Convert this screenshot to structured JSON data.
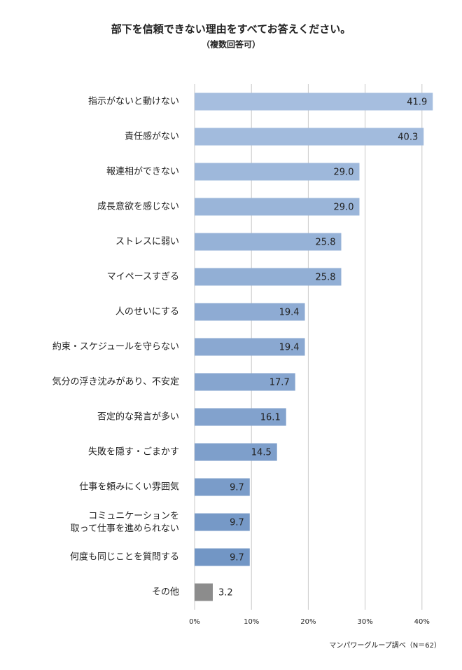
{
  "chart_data": {
    "type": "hbar",
    "title": "部下を信頼できない理由をすべてお答えください。",
    "subtitle": "（複数回答可）",
    "source": "マンパワーグループ調べ（N＝62）",
    "categories": [
      "指示がないと動けない",
      "責任感がない",
      "報連相ができない",
      "成長意欲を感じない",
      "ストレスに弱い",
      "マイペースすぎる",
      "人のせいにする",
      "約束・スケジュールを守らない",
      "気分の浮き沈みがあり、不安定",
      "否定的な発言が多い",
      "失敗を隠す・ごまかす",
      "仕事を頼みにくい雰囲気",
      "コミュニケーションを\n取って仕事を進められない",
      "何度も同じことを質問する",
      "その他"
    ],
    "values": [
      41.9,
      40.3,
      29.0,
      29.0,
      25.8,
      25.8,
      19.4,
      19.4,
      17.7,
      16.1,
      14.5,
      9.7,
      9.7,
      9.7,
      3.2
    ],
    "value_labels": [
      "41.9",
      "40.3",
      "29.0",
      "29.0",
      "25.8",
      "25.8",
      "19.4",
      "19.4",
      "17.7",
      "16.1",
      "14.5",
      "9.7",
      "9.7",
      "9.7",
      "3.2"
    ],
    "colors": [
      "#a6bedf",
      "#a2bbdd",
      "#9eb8db",
      "#9ab5d9",
      "#96b2d7",
      "#92afd5",
      "#8eabd3",
      "#8aa8d1",
      "#86a5cf",
      "#82a2cd",
      "#7e9fcb",
      "#7a9cc9",
      "#7699c7",
      "#7296c5",
      "#8c8c8c"
    ],
    "xlim": [
      0,
      45
    ],
    "xticks": [
      {
        "value": 0,
        "label": "0%"
      },
      {
        "value": 10,
        "label": "10%"
      },
      {
        "value": 20,
        "label": "20%"
      },
      {
        "value": 30,
        "label": "30%"
      },
      {
        "value": 40,
        "label": "40%"
      }
    ],
    "grid": true
  }
}
